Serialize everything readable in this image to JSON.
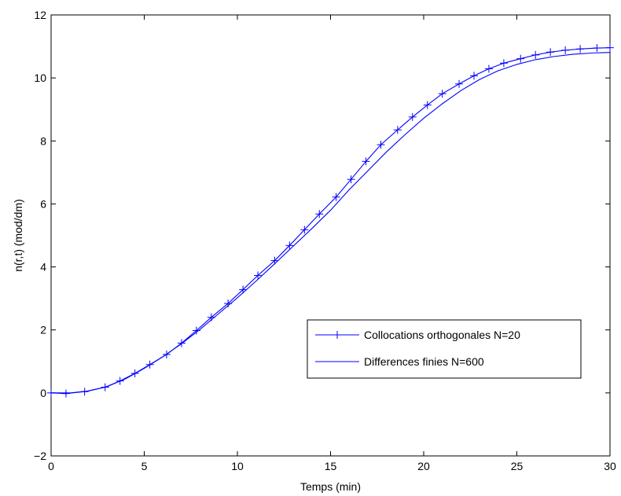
{
  "chart_data": {
    "type": "line",
    "title": "",
    "xlabel": "Temps (min)",
    "ylabel": "n(r,t) (mod/dm)",
    "xlim": [
      0,
      30
    ],
    "ylim": [
      -2,
      12
    ],
    "xticks": [
      0,
      5,
      10,
      15,
      20,
      25,
      30
    ],
    "yticks": [
      -2,
      0,
      2,
      4,
      6,
      8,
      10,
      12
    ],
    "xtick_labels": [
      "0",
      "5",
      "10",
      "15",
      "20",
      "25",
      "30"
    ],
    "ytick_labels": [
      "−2",
      "0",
      "2",
      "4",
      "6",
      "8",
      "10",
      "12"
    ],
    "grid": false,
    "legend": "center-right",
    "line_color": "#0000ff",
    "series": [
      {
        "name": "Collocations orthogonales N=20",
        "marker": "plus",
        "x": [
          0,
          0.8,
          1.8,
          2.9,
          3.7,
          4.5,
          5.3,
          6.2,
          7.0,
          7.8,
          8.6,
          9.5,
          10.3,
          11.1,
          12.0,
          12.8,
          13.6,
          14.4,
          15.3,
          16.1,
          16.9,
          17.7,
          18.6,
          19.4,
          20.2,
          21.0,
          21.9,
          22.7,
          23.5,
          24.3,
          25.2,
          26.0,
          26.8,
          27.6,
          28.4,
          29.3,
          30.0
        ],
        "y": [
          0.0,
          -0.02,
          0.04,
          0.18,
          0.38,
          0.62,
          0.9,
          1.22,
          1.58,
          1.98,
          2.4,
          2.84,
          3.28,
          3.73,
          4.2,
          4.68,
          5.18,
          5.68,
          6.22,
          6.78,
          7.35,
          7.88,
          8.35,
          8.76,
          9.14,
          9.5,
          9.81,
          10.07,
          10.29,
          10.47,
          10.61,
          10.73,
          10.82,
          10.88,
          10.92,
          10.95,
          10.96
        ]
      },
      {
        "name": "Differences finies N=600",
        "marker": "none",
        "x": [
          0,
          1,
          2,
          3,
          4,
          5,
          6,
          7,
          8,
          9,
          10,
          11,
          12,
          13,
          14,
          15,
          16,
          17,
          18,
          19,
          20,
          21,
          22,
          23,
          24,
          25,
          26,
          27,
          28,
          29,
          30
        ],
        "y": [
          0.0,
          0.0,
          0.06,
          0.2,
          0.45,
          0.78,
          1.15,
          1.56,
          2.02,
          2.52,
          3.02,
          3.55,
          4.1,
          4.66,
          5.22,
          5.8,
          6.45,
          7.05,
          7.65,
          8.2,
          8.72,
          9.18,
          9.6,
          9.95,
          10.23,
          10.43,
          10.58,
          10.68,
          10.75,
          10.79,
          10.81
        ]
      }
    ]
  }
}
